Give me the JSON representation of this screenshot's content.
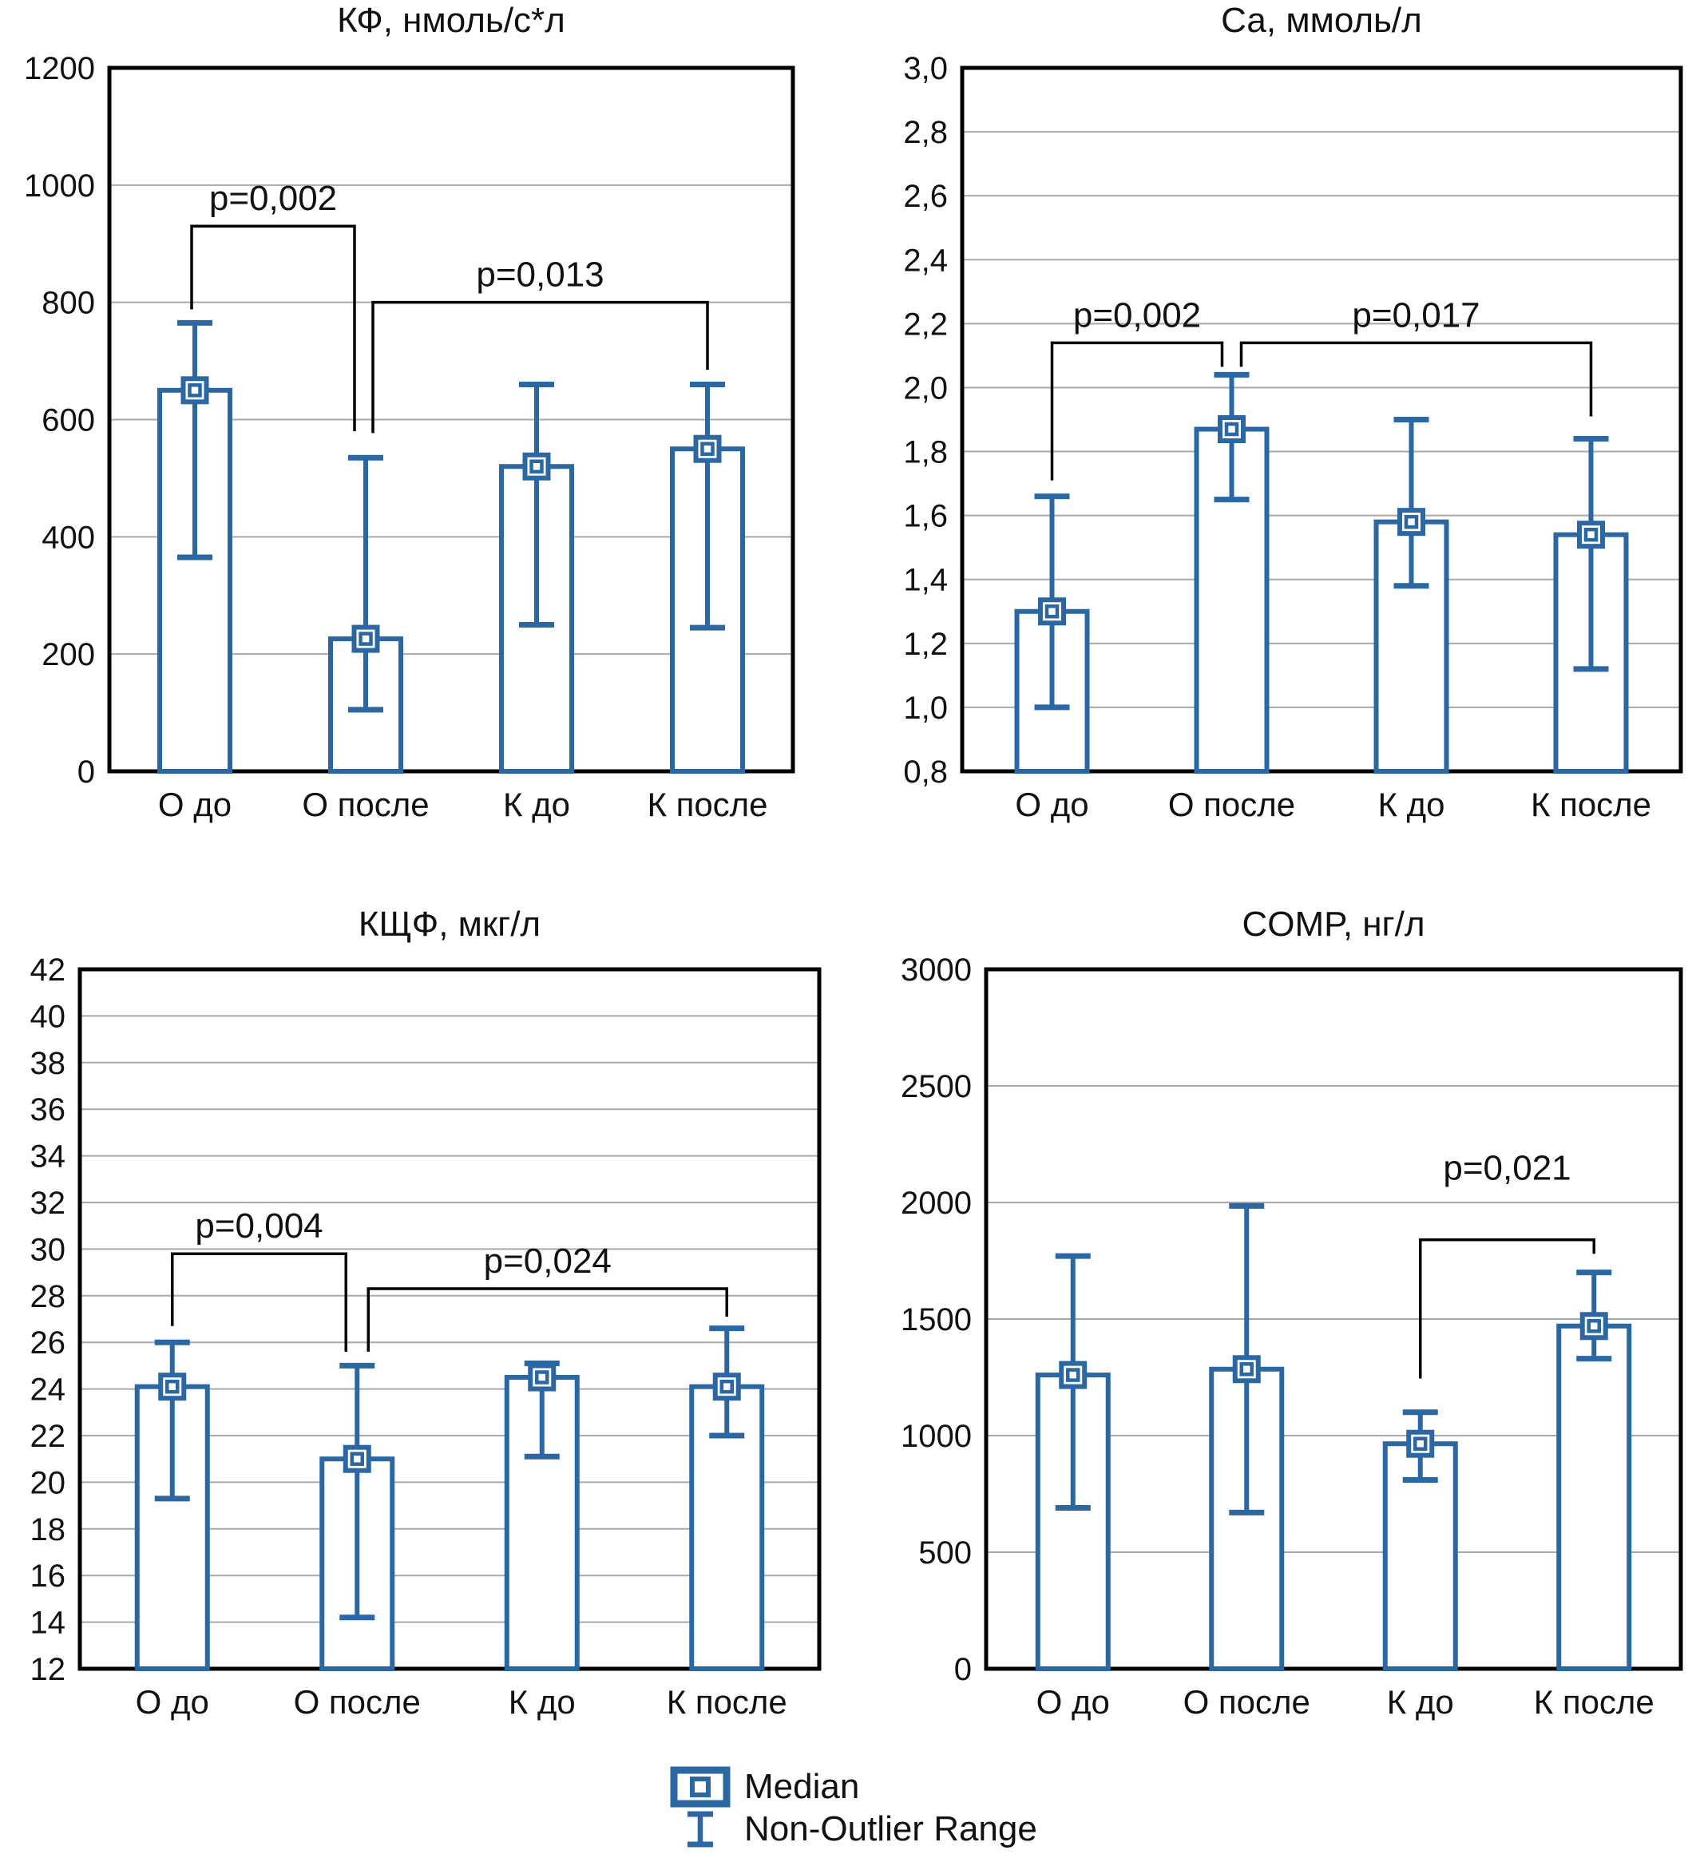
{
  "figure_title": "Panel of four median / non-outlier-range bar charts",
  "colors": {
    "bar": "#2a67a3",
    "frame": "#000000",
    "grid": "#a9a9a9",
    "text": "#111111",
    "bracket": "#000000",
    "background": "#ffffff"
  },
  "legend": {
    "items": [
      {
        "symbol": "median-marker",
        "label": "Median"
      },
      {
        "symbol": "non-outlier-range-whisker",
        "label": "Non-Outlier Range"
      }
    ]
  },
  "chart_data": [
    {
      "id": "kf",
      "type": "bar",
      "title": "КФ, нмоль/с*л",
      "categories": [
        "О до",
        "О после",
        "К до",
        "К после"
      ],
      "series": [
        {
          "name": "Median",
          "values": [
            650,
            226,
            520,
            550
          ]
        },
        {
          "name": "Non-Outlier Range low",
          "values": [
            365,
            105,
            250,
            245
          ]
        },
        {
          "name": "Non-Outlier Range high",
          "values": [
            765,
            535,
            660,
            660
          ]
        }
      ],
      "bar_tops": [
        650,
        226,
        520,
        550
      ],
      "medians": [
        650,
        226,
        520,
        550
      ],
      "whisker_low": [
        365,
        105,
        250,
        245
      ],
      "whisker_high": [
        765,
        535,
        660,
        660
      ],
      "ylim": [
        0,
        1200
      ],
      "ystep": 200,
      "ytick_labels": [
        "0",
        "200",
        "400",
        "600",
        "800",
        "1000",
        "1200"
      ],
      "grid": true,
      "annotations": [
        {
          "label": "p=0,002",
          "from": 0,
          "to": 1,
          "from_offset": -4,
          "to_offset": -14,
          "y_top": 930,
          "from_drop": 788,
          "to_drop": 580,
          "label_dy": -20
        },
        {
          "label": "p=0,013",
          "from": 1,
          "to": 3,
          "from_offset": 9,
          "to_offset": 0,
          "y_top": 800,
          "from_drop": 577,
          "to_drop": 685,
          "label_dy": -20
        }
      ]
    },
    {
      "id": "ca",
      "type": "bar",
      "title": "Са, ммоль/л",
      "categories": [
        "О до",
        "О после",
        "К до",
        "К после"
      ],
      "series": [
        {
          "name": "Median",
          "values": [
            1.3,
            1.87,
            1.58,
            1.54
          ]
        },
        {
          "name": "Non-Outlier Range low",
          "values": [
            1.0,
            1.65,
            1.38,
            1.12
          ]
        },
        {
          "name": "Non-Outlier Range high",
          "values": [
            1.66,
            2.04,
            1.9,
            1.84
          ]
        }
      ],
      "bar_tops": [
        1.3,
        1.87,
        1.58,
        1.54
      ],
      "medians": [
        1.3,
        1.87,
        1.58,
        1.54
      ],
      "whisker_low": [
        1.0,
        1.65,
        1.38,
        1.12
      ],
      "whisker_high": [
        1.66,
        2.04,
        1.9,
        1.84
      ],
      "ylim": [
        0.8,
        3.0
      ],
      "ystep": 0.2,
      "ytick_labels": [
        "0,8",
        "1,0",
        "1,2",
        "1,4",
        "1,6",
        "1,8",
        "2,0",
        "2,2",
        "2,4",
        "2,6",
        "2,8",
        "3,0"
      ],
      "grid": true,
      "annotations": [
        {
          "label": "p=0,002",
          "from": 0,
          "to": 1,
          "from_offset": 0,
          "to_offset": -12,
          "y_top": 2.14,
          "from_drop": 1.71,
          "to_drop": 2.065,
          "label_dy": -20
        },
        {
          "label": "p=0,017",
          "from": 1,
          "to": 3,
          "from_offset": 12,
          "to_offset": 0,
          "y_top": 2.14,
          "from_drop": 2.065,
          "to_drop": 1.91,
          "label_dy": -20
        }
      ]
    },
    {
      "id": "kshf",
      "type": "bar",
      "title": "КЩФ, мкг/л",
      "categories": [
        "О до",
        "О после",
        "К до",
        "К после"
      ],
      "series": [
        {
          "name": "Median",
          "values": [
            24.1,
            21.0,
            24.5,
            24.1
          ]
        },
        {
          "name": "Non-Outlier Range low",
          "values": [
            19.3,
            14.2,
            21.1,
            22.0
          ]
        },
        {
          "name": "Non-Outlier Range high",
          "values": [
            26.0,
            25.0,
            25.1,
            26.6
          ]
        }
      ],
      "bar_tops": [
        24.1,
        21.0,
        24.5,
        24.1
      ],
      "medians": [
        24.1,
        21.0,
        24.5,
        24.1
      ],
      "whisker_low": [
        19.3,
        14.2,
        21.1,
        22.0
      ],
      "whisker_high": [
        26.0,
        25.0,
        25.1,
        26.6
      ],
      "ylim": [
        12,
        42
      ],
      "ystep": 2,
      "ytick_labels": [
        "12",
        "14",
        "16",
        "18",
        "20",
        "22",
        "24",
        "26",
        "28",
        "30",
        "32",
        "34",
        "36",
        "38",
        "40",
        "42"
      ],
      "grid": true,
      "annotations": [
        {
          "label": "p=0,004",
          "from": 0,
          "to": 1,
          "from_offset": 0,
          "to_offset": -14,
          "y_top": 29.8,
          "from_drop": 26.7,
          "to_drop": 25.6,
          "label_dy": -20
        },
        {
          "label": "p=0,024",
          "from": 1,
          "to": 3,
          "from_offset": 14,
          "to_offset": 0,
          "y_top": 28.3,
          "from_drop": 25.6,
          "to_drop": 27.1,
          "label_dy": -20
        }
      ]
    },
    {
      "id": "comp",
      "type": "bar",
      "title": "COMP, нг/л",
      "categories": [
        "О до",
        "О после",
        "К до",
        "К после"
      ],
      "series": [
        {
          "name": "Median",
          "values": [
            1260,
            1285,
            965,
            1470
          ]
        },
        {
          "name": "Non-Outlier Range low",
          "values": [
            690,
            670,
            810,
            1330
          ]
        },
        {
          "name": "Non-Outlier Range high",
          "values": [
            1770,
            1985,
            1100,
            1700
          ]
        }
      ],
      "bar_tops": [
        1260,
        1285,
        965,
        1470
      ],
      "medians": [
        1260,
        1285,
        965,
        1470
      ],
      "whisker_low": [
        690,
        670,
        810,
        1330
      ],
      "whisker_high": [
        1770,
        1985,
        1100,
        1700
      ],
      "ylim": [
        0,
        3000
      ],
      "ystep": 500,
      "ytick_labels": [
        "0",
        "500",
        "1000",
        "1500",
        "2000",
        "2500",
        "3000"
      ],
      "grid": true,
      "annotations": [
        {
          "label": "p=0,021",
          "from": 2,
          "to": 3,
          "from_offset": 0,
          "to_offset": 0,
          "y_top": 1840,
          "from_drop": 1245,
          "to_drop": 1780,
          "label_dy": -75
        }
      ]
    }
  ]
}
